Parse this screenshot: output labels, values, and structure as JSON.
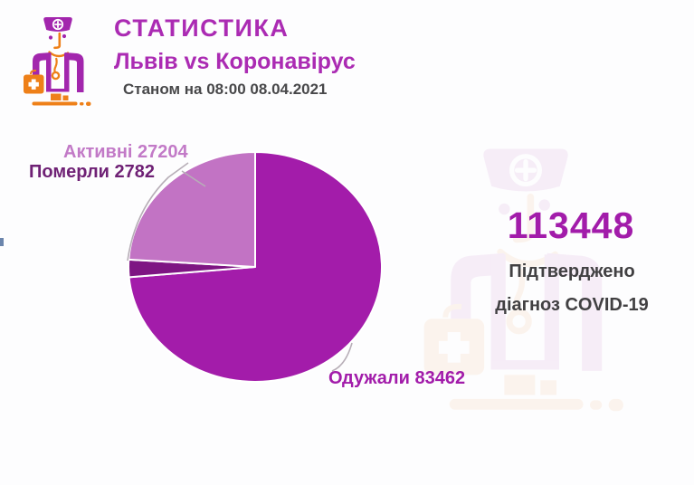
{
  "header": {
    "title": "СТАТИСТИКА",
    "subtitle": "Львів vs Коронавірус",
    "date_line": "Станом на 08:00 08.04.2021"
  },
  "summary": {
    "confirmed_total": "113448",
    "confirmed_caption_line1": "Підтверджено",
    "confirmed_caption_line2": "діагноз COVID-19"
  },
  "chart_data": {
    "type": "pie",
    "title": "Львів vs Коронавірус — статистика COVID-19 станом на 08:00 08.04.2021",
    "total": 113448,
    "start_angle_deg": 0,
    "direction": "clockwise",
    "legend_position": "outside-labels-with-leader-lines",
    "slices": [
      {
        "label": "Одужали",
        "value": 83462,
        "percent": 73.57,
        "color": "#a31caa"
      },
      {
        "label": "Померли",
        "value": 2782,
        "percent": 2.45,
        "color": "#7e1583"
      },
      {
        "label": "Активні",
        "value": 27204,
        "percent": 23.98,
        "color": "#c273c4"
      }
    ],
    "labels": {
      "active": "Активні 27204",
      "died": "Померли 2782",
      "recovered": "Одужали 83462"
    }
  },
  "colors": {
    "title": "#ab2bb3",
    "date_text": "#48484a",
    "main_slice": "#a31caa",
    "dark_slice": "#7e1583",
    "light_slice": "#c273c4",
    "label_active": "#c27ac7",
    "label_died": "#6f2175",
    "label_recovered": "#a21caa",
    "big_number": "#a21caa",
    "caption_text": "#414042",
    "leader_line": "#b7aeb7",
    "icon_purple": "#a226ad",
    "icon_orange": "#ee8019"
  }
}
